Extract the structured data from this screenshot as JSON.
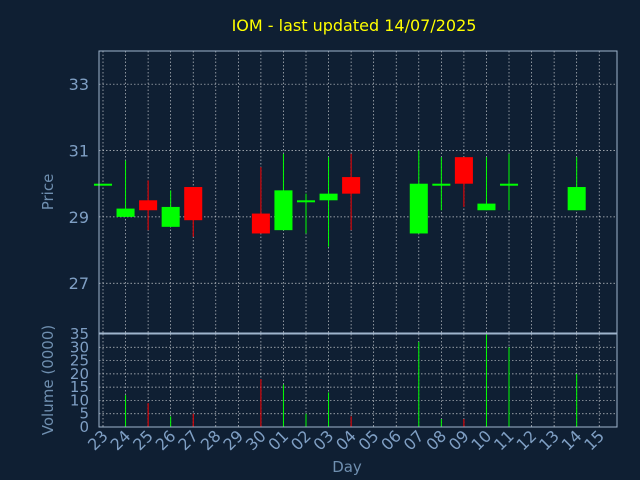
{
  "chart_data": {
    "type": "candlestick",
    "title": "IOM - last updated 14/07/2025",
    "xlabel": "Day",
    "price_panel": {
      "ylabel": "Price",
      "ylim": [
        25.5,
        34
      ],
      "yticks": [
        27,
        29,
        31,
        33
      ]
    },
    "volume_panel": {
      "ylabel": "Volume (0000)",
      "ylim": [
        0,
        35
      ],
      "yticks": [
        0,
        5,
        10,
        15,
        20,
        25,
        30,
        35
      ]
    },
    "grid": true,
    "categories": [
      "23",
      "24",
      "25",
      "26",
      "27",
      "28",
      "29",
      "30",
      "01",
      "02",
      "03",
      "04",
      "05",
      "06",
      "07",
      "08",
      "09",
      "10",
      "11",
      "12",
      "13",
      "14",
      "15"
    ],
    "candles": [
      {
        "day": "23",
        "open": 30.0,
        "high": 30.0,
        "low": 30.0,
        "close": 30.0,
        "volume": 0
      },
      {
        "day": "24",
        "open": 29.0,
        "high": 30.7,
        "low": 29.0,
        "close": 29.25,
        "volume": 12
      },
      {
        "day": "25",
        "open": 29.5,
        "high": 30.1,
        "low": 28.6,
        "close": 29.2,
        "volume": 9
      },
      {
        "day": "26",
        "open": 28.7,
        "high": 29.8,
        "low": 28.7,
        "close": 29.3,
        "volume": 4
      },
      {
        "day": "27",
        "open": 29.9,
        "high": 29.9,
        "low": 28.4,
        "close": 28.9,
        "volume": 5
      },
      {
        "day": "30",
        "open": 29.1,
        "high": 30.5,
        "low": 28.5,
        "close": 28.5,
        "volume": 18
      },
      {
        "day": "01",
        "open": 28.6,
        "high": 30.9,
        "low": 28.6,
        "close": 29.8,
        "volume": 16
      },
      {
        "day": "02",
        "open": 29.5,
        "high": 29.7,
        "low": 28.5,
        "close": 29.5,
        "volume": 5
      },
      {
        "day": "03",
        "open": 29.5,
        "high": 30.8,
        "low": 28.1,
        "close": 29.7,
        "volume": 13
      },
      {
        "day": "04",
        "open": 30.2,
        "high": 30.9,
        "low": 28.6,
        "close": 29.7,
        "volume": 4
      },
      {
        "day": "07",
        "open": 28.5,
        "high": 31.0,
        "low": 28.5,
        "close": 30.0,
        "volume": 32
      },
      {
        "day": "08",
        "open": 30.0,
        "high": 30.8,
        "low": 29.2,
        "close": 30.0,
        "volume": 3
      },
      {
        "day": "09",
        "open": 30.8,
        "high": 30.8,
        "low": 29.3,
        "close": 30.0,
        "volume": 3
      },
      {
        "day": "10",
        "open": 29.2,
        "high": 30.8,
        "low": 29.2,
        "close": 29.4,
        "volume": 35
      },
      {
        "day": "11",
        "open": 30.0,
        "high": 30.9,
        "low": 29.2,
        "close": 30.0,
        "volume": 30
      },
      {
        "day": "14",
        "open": 29.2,
        "high": 30.8,
        "low": 29.2,
        "close": 29.9,
        "volume": 20
      }
    ],
    "colors": {
      "background": "#0f1f33",
      "up": "#00ff00",
      "down": "#ff0000",
      "title": "#ffff00",
      "axis_label": "#6f8fb0",
      "tick": "#7f9fc4",
      "frame": "#9fb4cc",
      "grid": "#ffffff"
    }
  }
}
